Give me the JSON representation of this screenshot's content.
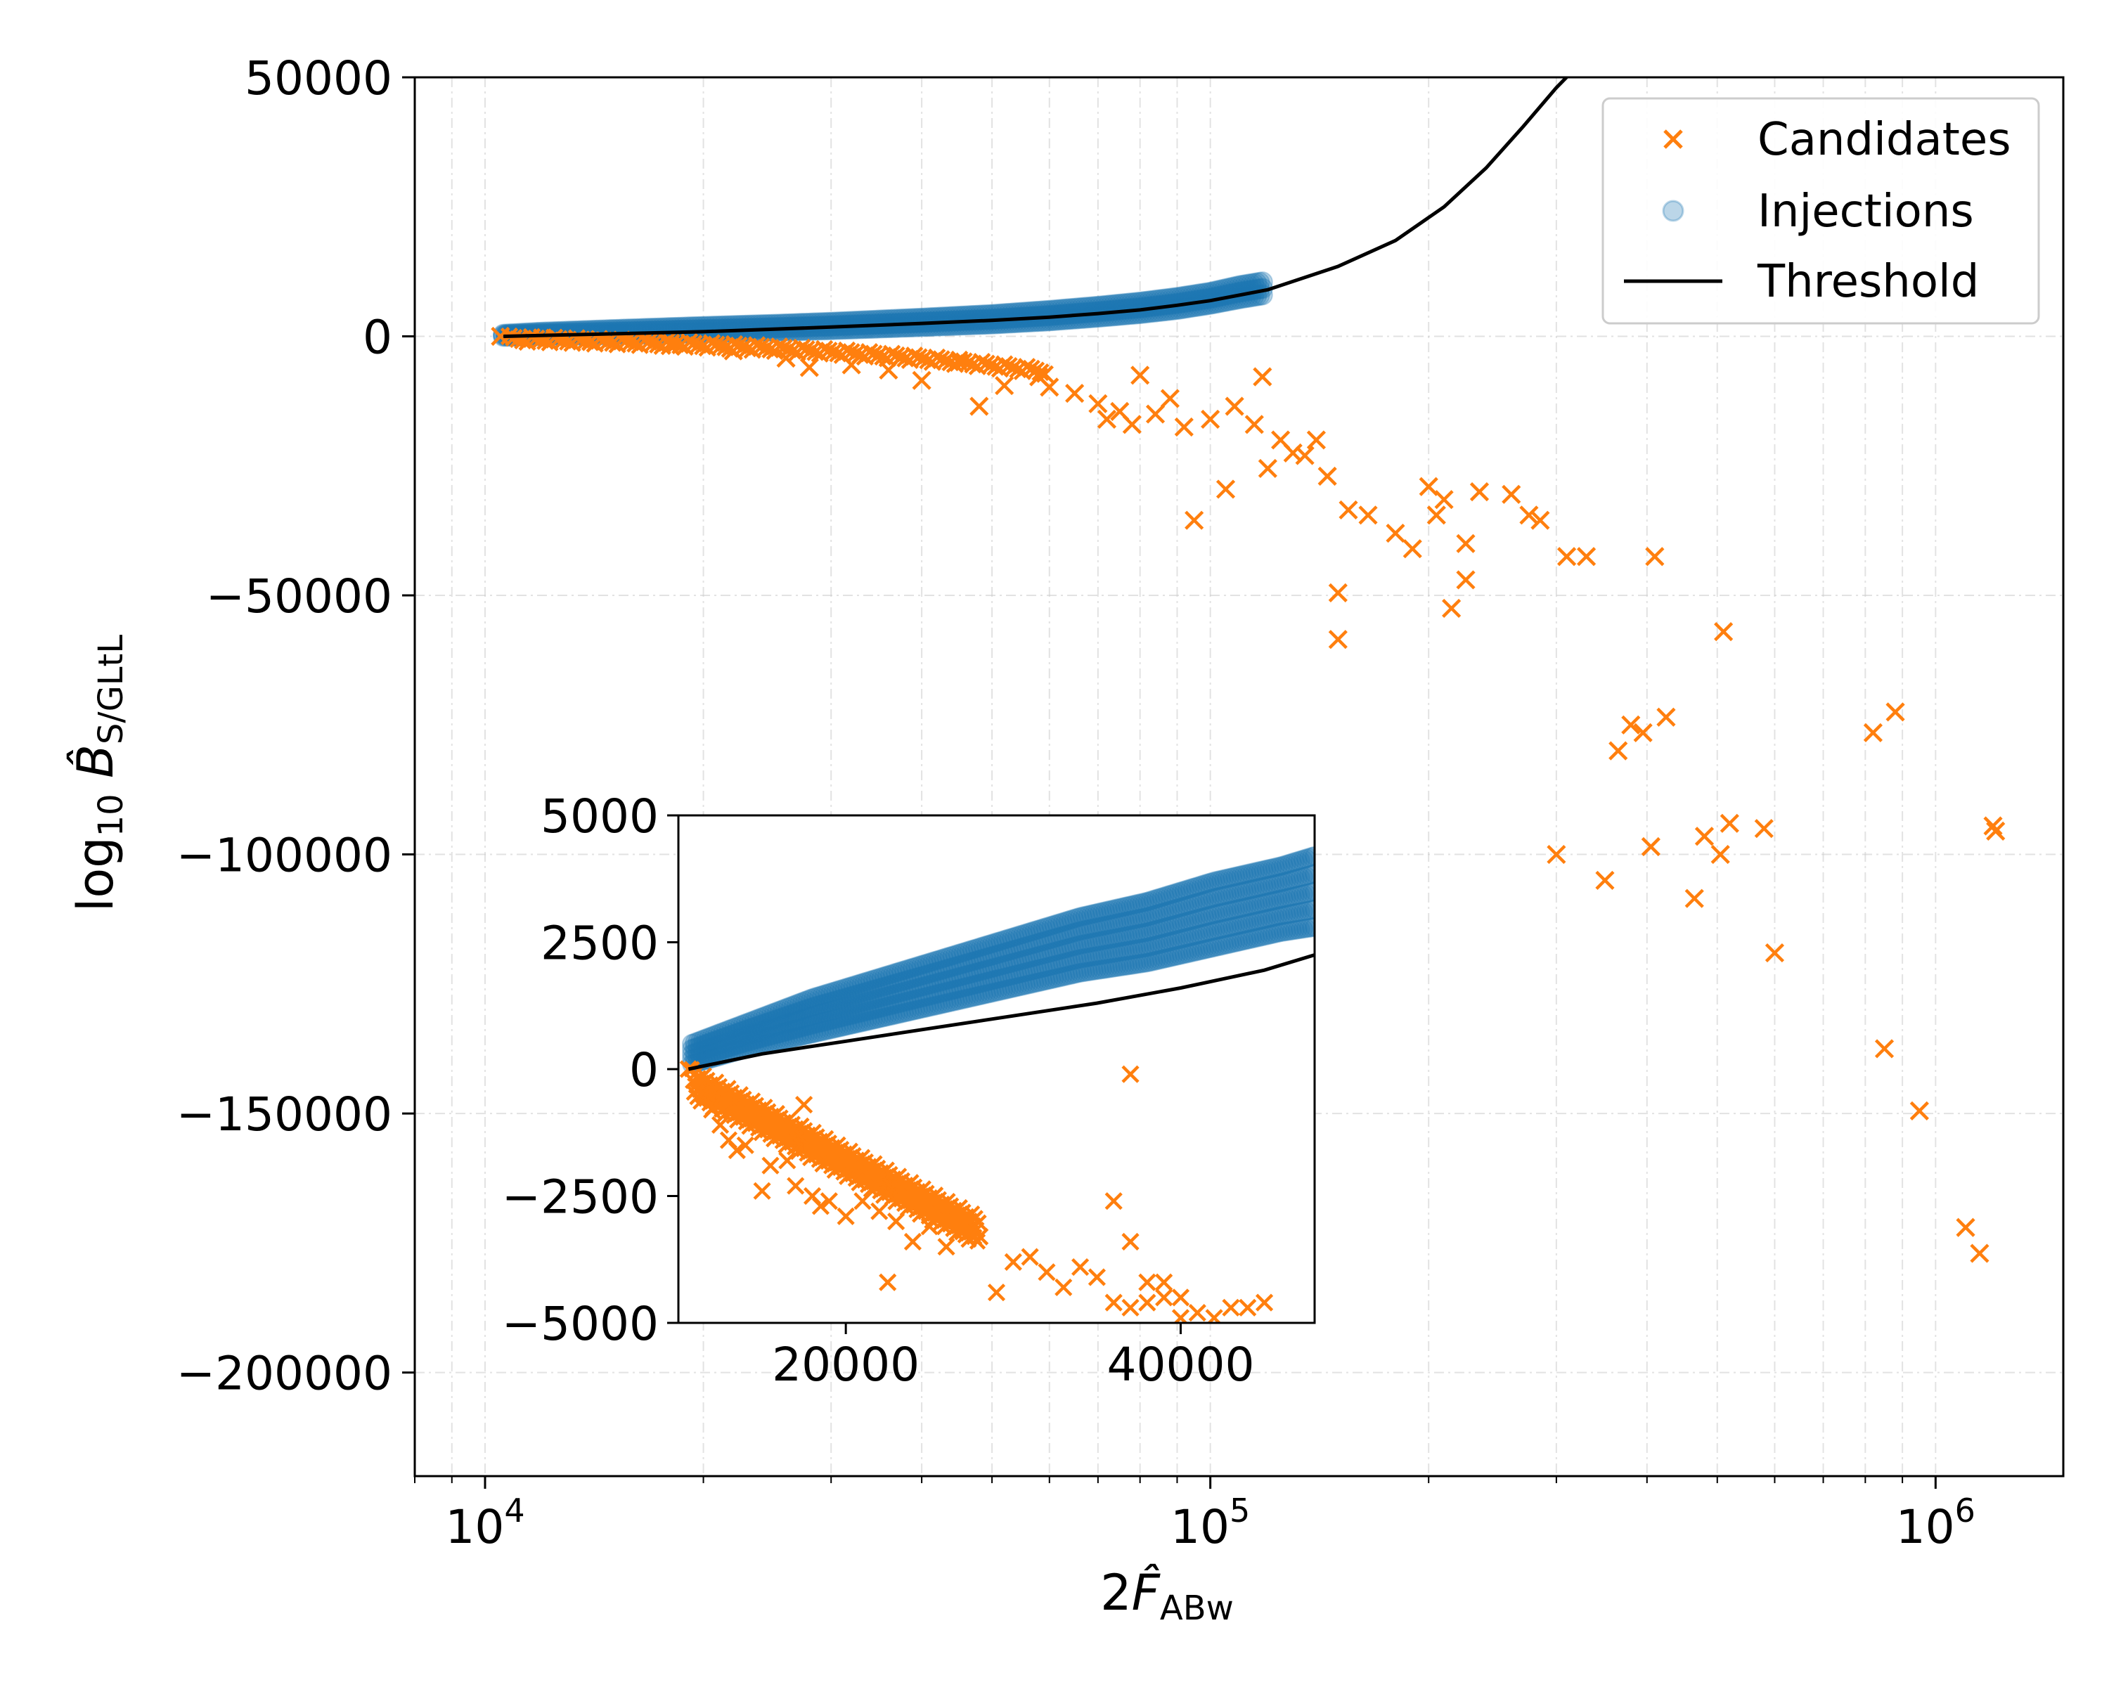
{
  "colors": {
    "candidates": "#ff7f0e",
    "injections": "#1f77b4",
    "threshold": "#000000",
    "grid": "#cccccc"
  },
  "chart_data": {
    "type": "scatter",
    "x_scale": "log",
    "xlim": [
      8000,
      1500000
    ],
    "ylim": [
      -220000,
      50000
    ],
    "xlabel": "2F̂ABw",
    "ylabel": "log10 B̂S/GLtL",
    "x_ticks": [
      {
        "value": 10000,
        "label": "10",
        "exp": "4"
      },
      {
        "value": 100000,
        "label": "10",
        "exp": "5"
      },
      {
        "value": 1000000,
        "label": "10",
        "exp": "6"
      }
    ],
    "y_ticks": [
      {
        "value": 50000,
        "label": "50000"
      },
      {
        "value": 0,
        "label": "0"
      },
      {
        "value": -50000,
        "label": "−50000"
      },
      {
        "value": -100000,
        "label": "−100000"
      },
      {
        "value": -150000,
        "label": "−150000"
      },
      {
        "value": -200000,
        "label": "−200000"
      }
    ],
    "grid": true,
    "legend": {
      "placement": "top-right",
      "entries": [
        {
          "label": "Candidates",
          "marker": "x"
        },
        {
          "label": "Injections",
          "marker": "circle"
        },
        {
          "label": "Threshold",
          "marker": "line"
        }
      ]
    },
    "series": [
      {
        "name": "Candidates",
        "marker": "x",
        "points": [
          [
            10500,
            0
          ],
          [
            12000,
            -300
          ],
          [
            14000,
            -900
          ],
          [
            18000,
            -1800
          ],
          [
            22000,
            -2800
          ],
          [
            26000,
            -4200
          ],
          [
            28000,
            -6000
          ],
          [
            32000,
            -5500
          ],
          [
            36000,
            -6500
          ],
          [
            40000,
            -8500
          ],
          [
            45000,
            -5000
          ],
          [
            48000,
            -13500
          ],
          [
            52000,
            -9500
          ],
          [
            58000,
            -7800
          ],
          [
            60000,
            -9800
          ],
          [
            65000,
            -11000
          ],
          [
            70000,
            -13000
          ],
          [
            72000,
            -16000
          ],
          [
            75000,
            -14500
          ],
          [
            78000,
            -17000
          ],
          [
            80000,
            -7500
          ],
          [
            84000,
            -15000
          ],
          [
            88000,
            -12000
          ],
          [
            92000,
            -17500
          ],
          [
            95000,
            -35500
          ],
          [
            100000,
            -16000
          ],
          [
            105000,
            -29500
          ],
          [
            108000,
            -13500
          ],
          [
            115000,
            -17000
          ],
          [
            118000,
            -7800
          ],
          [
            120000,
            -25500
          ],
          [
            125000,
            -20000
          ],
          [
            130000,
            -22500
          ],
          [
            135000,
            -23000
          ],
          [
            140000,
            -20000
          ],
          [
            145000,
            -27000
          ],
          [
            150000,
            -49500
          ],
          [
            150000,
            -58500
          ],
          [
            155000,
            -33500
          ],
          [
            165000,
            -34500
          ],
          [
            180000,
            -38000
          ],
          [
            190000,
            -41000
          ],
          [
            200000,
            -29000
          ],
          [
            205000,
            -34500
          ],
          [
            210000,
            -31500
          ],
          [
            215000,
            -52500
          ],
          [
            225000,
            -40000
          ],
          [
            225000,
            -47000
          ],
          [
            235000,
            -30000
          ],
          [
            260000,
            -30500
          ],
          [
            275000,
            -34500
          ],
          [
            285000,
            -35500
          ],
          [
            300000,
            -100000
          ],
          [
            310000,
            -42500
          ],
          [
            330000,
            -42500
          ],
          [
            350000,
            -105000
          ],
          [
            365000,
            -80000
          ],
          [
            380000,
            -75000
          ],
          [
            395000,
            -76500
          ],
          [
            405000,
            -98500
          ],
          [
            410000,
            -42500
          ],
          [
            425000,
            -73500
          ],
          [
            465000,
            -108500
          ],
          [
            480000,
            -96500
          ],
          [
            505000,
            -100000
          ],
          [
            510000,
            -57000
          ],
          [
            520000,
            -94000
          ],
          [
            580000,
            -95000
          ],
          [
            600000,
            -119000
          ],
          [
            820000,
            -76500
          ],
          [
            850000,
            -137500
          ],
          [
            880000,
            -72500
          ],
          [
            950000,
            -149500
          ],
          [
            1100000,
            -172000
          ],
          [
            1150000,
            -177000
          ],
          [
            1200000,
            -94500
          ],
          [
            1210000,
            -95500
          ]
        ]
      },
      {
        "name": "Injections",
        "marker": "circle",
        "band": {
          "x": [
            10600,
            12000,
            15000,
            20000,
            25000,
            30000,
            40000,
            50000,
            60000,
            70000,
            80000,
            90000,
            100000,
            110000,
            118000
          ],
          "upper": [
            400,
            800,
            1300,
            1900,
            2300,
            2700,
            3500,
            4200,
            5000,
            5800,
            6600,
            7500,
            8500,
            9800,
            10500
          ],
          "lower": [
            0,
            150,
            350,
            700,
            1000,
            1300,
            1900,
            2400,
            3000,
            3700,
            4400,
            5200,
            6200,
            7300,
            8000
          ]
        }
      },
      {
        "name": "Threshold",
        "marker": "line",
        "x": [
          10600,
          20000,
          30000,
          40000,
          50000,
          60000,
          70000,
          80000,
          90000,
          100000,
          120000,
          150000,
          180000,
          210000,
          240000,
          270000,
          300000,
          320000
        ],
        "y": [
          0,
          900,
          1800,
          2500,
          3100,
          3700,
          4400,
          5100,
          6000,
          6900,
          9000,
          13500,
          18500,
          25000,
          32500,
          40500,
          48000,
          52000
        ]
      }
    ],
    "inset": {
      "type": "scatter",
      "x_scale": "linear",
      "xlim": [
        10000,
        48000
      ],
      "ylim": [
        -5000,
        5000
      ],
      "x_ticks": [
        {
          "value": 20000,
          "label": "20000"
        },
        {
          "value": 40000,
          "label": "40000"
        }
      ],
      "y_ticks": [
        {
          "value": 5000,
          "label": "5000"
        },
        {
          "value": 2500,
          "label": "2500"
        },
        {
          "value": 0,
          "label": "0"
        },
        {
          "value": -2500,
          "label": "−2500"
        },
        {
          "value": -5000,
          "label": "−5000"
        }
      ],
      "candidates": [
        [
          10600,
          0
        ],
        [
          11200,
          -200
        ],
        [
          11500,
          -500
        ],
        [
          12000,
          -800
        ],
        [
          12500,
          -1100
        ],
        [
          13000,
          -1400
        ],
        [
          13500,
          -1600
        ],
        [
          14000,
          -1500
        ],
        [
          15000,
          -2400
        ],
        [
          15500,
          -1900
        ],
        [
          16500,
          -1800
        ],
        [
          17000,
          -2300
        ],
        [
          18000,
          -2500
        ],
        [
          19000,
          -2600
        ],
        [
          20000,
          -2900
        ],
        [
          21000,
          -2600
        ],
        [
          22000,
          -2800
        ],
        [
          23000,
          -3000
        ],
        [
          24000,
          -3400
        ],
        [
          25000,
          -3100
        ],
        [
          26000,
          -3500
        ],
        [
          27000,
          -3200
        ],
        [
          28000,
          -3300
        ],
        [
          29000,
          -4400
        ],
        [
          30000,
          -3800
        ],
        [
          31000,
          -3700
        ],
        [
          32000,
          -4000
        ],
        [
          33000,
          -4300
        ],
        [
          34000,
          -3900
        ],
        [
          35000,
          -4100
        ],
        [
          36000,
          -4600
        ],
        [
          37000,
          -4700
        ],
        [
          38000,
          -4600
        ],
        [
          39000,
          -4500
        ],
        [
          40000,
          -4500
        ],
        [
          41000,
          -4800
        ],
        [
          42000,
          -4900
        ],
        [
          43000,
          -4700
        ],
        [
          44000,
          -4700
        ],
        [
          45000,
          -4600
        ],
        [
          36000,
          -2600
        ],
        [
          37000,
          -3400
        ],
        [
          38000,
          -4200
        ],
        [
          39000,
          -4200
        ],
        [
          40000,
          -4900
        ]
      ],
      "isolated_candidates": [
        [
          37000,
          -100
        ],
        [
          17500,
          -700
        ],
        [
          18500,
          -2700
        ],
        [
          22500,
          -4200
        ]
      ],
      "injection_band": {
        "x": [
          10800,
          14000,
          18000,
          22000,
          26000,
          30000,
          34000,
          38000,
          42000,
          46000,
          48000
        ],
        "upper": [
          500,
          900,
          1400,
          1800,
          2200,
          2600,
          3000,
          3300,
          3700,
          4000,
          4200
        ],
        "lower": [
          100,
          400,
          700,
          1000,
          1300,
          1600,
          1900,
          2100,
          2400,
          2700,
          2800
        ]
      },
      "threshold": {
        "x": [
          10600,
          15000,
          20000,
          25000,
          30000,
          35000,
          40000,
          45000,
          48000
        ],
        "y": [
          0,
          300,
          550,
          800,
          1050,
          1300,
          1600,
          1950,
          2250
        ]
      }
    }
  }
}
